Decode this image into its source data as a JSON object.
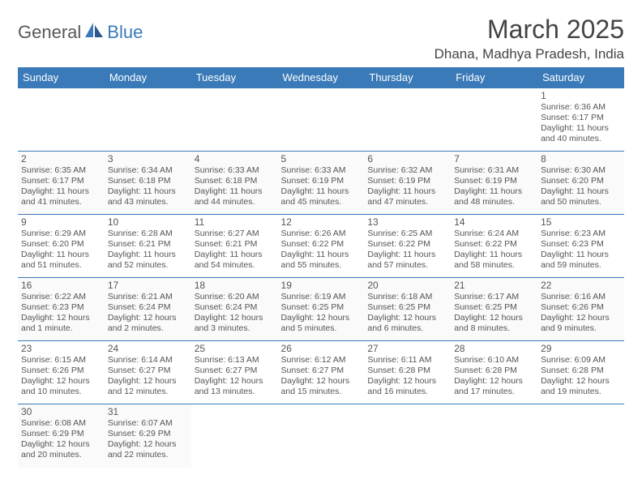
{
  "brand": {
    "part1": "General",
    "part2": "Blue"
  },
  "title": "March 2025",
  "location": "Dhana, Madhya Pradesh, India",
  "colors": {
    "header_bg": "#3a7ab8",
    "header_text": "#ffffff",
    "border": "#3a7ab8",
    "text": "#555555",
    "brand_gray": "#57585a",
    "brand_blue": "#3a7ab8"
  },
  "fonts": {
    "title_size": 32,
    "location_size": 17,
    "dayhead_size": 13,
    "daynum_size": 12,
    "body_size": 10.5
  },
  "dayHeaders": [
    "Sunday",
    "Monday",
    "Tuesday",
    "Wednesday",
    "Thursday",
    "Friday",
    "Saturday"
  ],
  "weeks": [
    [
      null,
      null,
      null,
      null,
      null,
      null,
      {
        "n": "1",
        "sr": "Sunrise: 6:36 AM",
        "ss": "Sunset: 6:17 PM",
        "dl": "Daylight: 11 hours and 40 minutes."
      }
    ],
    [
      {
        "n": "2",
        "sr": "Sunrise: 6:35 AM",
        "ss": "Sunset: 6:17 PM",
        "dl": "Daylight: 11 hours and 41 minutes."
      },
      {
        "n": "3",
        "sr": "Sunrise: 6:34 AM",
        "ss": "Sunset: 6:18 PM",
        "dl": "Daylight: 11 hours and 43 minutes."
      },
      {
        "n": "4",
        "sr": "Sunrise: 6:33 AM",
        "ss": "Sunset: 6:18 PM",
        "dl": "Daylight: 11 hours and 44 minutes."
      },
      {
        "n": "5",
        "sr": "Sunrise: 6:33 AM",
        "ss": "Sunset: 6:19 PM",
        "dl": "Daylight: 11 hours and 45 minutes."
      },
      {
        "n": "6",
        "sr": "Sunrise: 6:32 AM",
        "ss": "Sunset: 6:19 PM",
        "dl": "Daylight: 11 hours and 47 minutes."
      },
      {
        "n": "7",
        "sr": "Sunrise: 6:31 AM",
        "ss": "Sunset: 6:19 PM",
        "dl": "Daylight: 11 hours and 48 minutes."
      },
      {
        "n": "8",
        "sr": "Sunrise: 6:30 AM",
        "ss": "Sunset: 6:20 PM",
        "dl": "Daylight: 11 hours and 50 minutes."
      }
    ],
    [
      {
        "n": "9",
        "sr": "Sunrise: 6:29 AM",
        "ss": "Sunset: 6:20 PM",
        "dl": "Daylight: 11 hours and 51 minutes."
      },
      {
        "n": "10",
        "sr": "Sunrise: 6:28 AM",
        "ss": "Sunset: 6:21 PM",
        "dl": "Daylight: 11 hours and 52 minutes."
      },
      {
        "n": "11",
        "sr": "Sunrise: 6:27 AM",
        "ss": "Sunset: 6:21 PM",
        "dl": "Daylight: 11 hours and 54 minutes."
      },
      {
        "n": "12",
        "sr": "Sunrise: 6:26 AM",
        "ss": "Sunset: 6:22 PM",
        "dl": "Daylight: 11 hours and 55 minutes."
      },
      {
        "n": "13",
        "sr": "Sunrise: 6:25 AM",
        "ss": "Sunset: 6:22 PM",
        "dl": "Daylight: 11 hours and 57 minutes."
      },
      {
        "n": "14",
        "sr": "Sunrise: 6:24 AM",
        "ss": "Sunset: 6:22 PM",
        "dl": "Daylight: 11 hours and 58 minutes."
      },
      {
        "n": "15",
        "sr": "Sunrise: 6:23 AM",
        "ss": "Sunset: 6:23 PM",
        "dl": "Daylight: 11 hours and 59 minutes."
      }
    ],
    [
      {
        "n": "16",
        "sr": "Sunrise: 6:22 AM",
        "ss": "Sunset: 6:23 PM",
        "dl": "Daylight: 12 hours and 1 minute."
      },
      {
        "n": "17",
        "sr": "Sunrise: 6:21 AM",
        "ss": "Sunset: 6:24 PM",
        "dl": "Daylight: 12 hours and 2 minutes."
      },
      {
        "n": "18",
        "sr": "Sunrise: 6:20 AM",
        "ss": "Sunset: 6:24 PM",
        "dl": "Daylight: 12 hours and 3 minutes."
      },
      {
        "n": "19",
        "sr": "Sunrise: 6:19 AM",
        "ss": "Sunset: 6:25 PM",
        "dl": "Daylight: 12 hours and 5 minutes."
      },
      {
        "n": "20",
        "sr": "Sunrise: 6:18 AM",
        "ss": "Sunset: 6:25 PM",
        "dl": "Daylight: 12 hours and 6 minutes."
      },
      {
        "n": "21",
        "sr": "Sunrise: 6:17 AM",
        "ss": "Sunset: 6:25 PM",
        "dl": "Daylight: 12 hours and 8 minutes."
      },
      {
        "n": "22",
        "sr": "Sunrise: 6:16 AM",
        "ss": "Sunset: 6:26 PM",
        "dl": "Daylight: 12 hours and 9 minutes."
      }
    ],
    [
      {
        "n": "23",
        "sr": "Sunrise: 6:15 AM",
        "ss": "Sunset: 6:26 PM",
        "dl": "Daylight: 12 hours and 10 minutes."
      },
      {
        "n": "24",
        "sr": "Sunrise: 6:14 AM",
        "ss": "Sunset: 6:27 PM",
        "dl": "Daylight: 12 hours and 12 minutes."
      },
      {
        "n": "25",
        "sr": "Sunrise: 6:13 AM",
        "ss": "Sunset: 6:27 PM",
        "dl": "Daylight: 12 hours and 13 minutes."
      },
      {
        "n": "26",
        "sr": "Sunrise: 6:12 AM",
        "ss": "Sunset: 6:27 PM",
        "dl": "Daylight: 12 hours and 15 minutes."
      },
      {
        "n": "27",
        "sr": "Sunrise: 6:11 AM",
        "ss": "Sunset: 6:28 PM",
        "dl": "Daylight: 12 hours and 16 minutes."
      },
      {
        "n": "28",
        "sr": "Sunrise: 6:10 AM",
        "ss": "Sunset: 6:28 PM",
        "dl": "Daylight: 12 hours and 17 minutes."
      },
      {
        "n": "29",
        "sr": "Sunrise: 6:09 AM",
        "ss": "Sunset: 6:28 PM",
        "dl": "Daylight: 12 hours and 19 minutes."
      }
    ],
    [
      {
        "n": "30",
        "sr": "Sunrise: 6:08 AM",
        "ss": "Sunset: 6:29 PM",
        "dl": "Daylight: 12 hours and 20 minutes."
      },
      {
        "n": "31",
        "sr": "Sunrise: 6:07 AM",
        "ss": "Sunset: 6:29 PM",
        "dl": "Daylight: 12 hours and 22 minutes."
      },
      null,
      null,
      null,
      null,
      null
    ]
  ]
}
